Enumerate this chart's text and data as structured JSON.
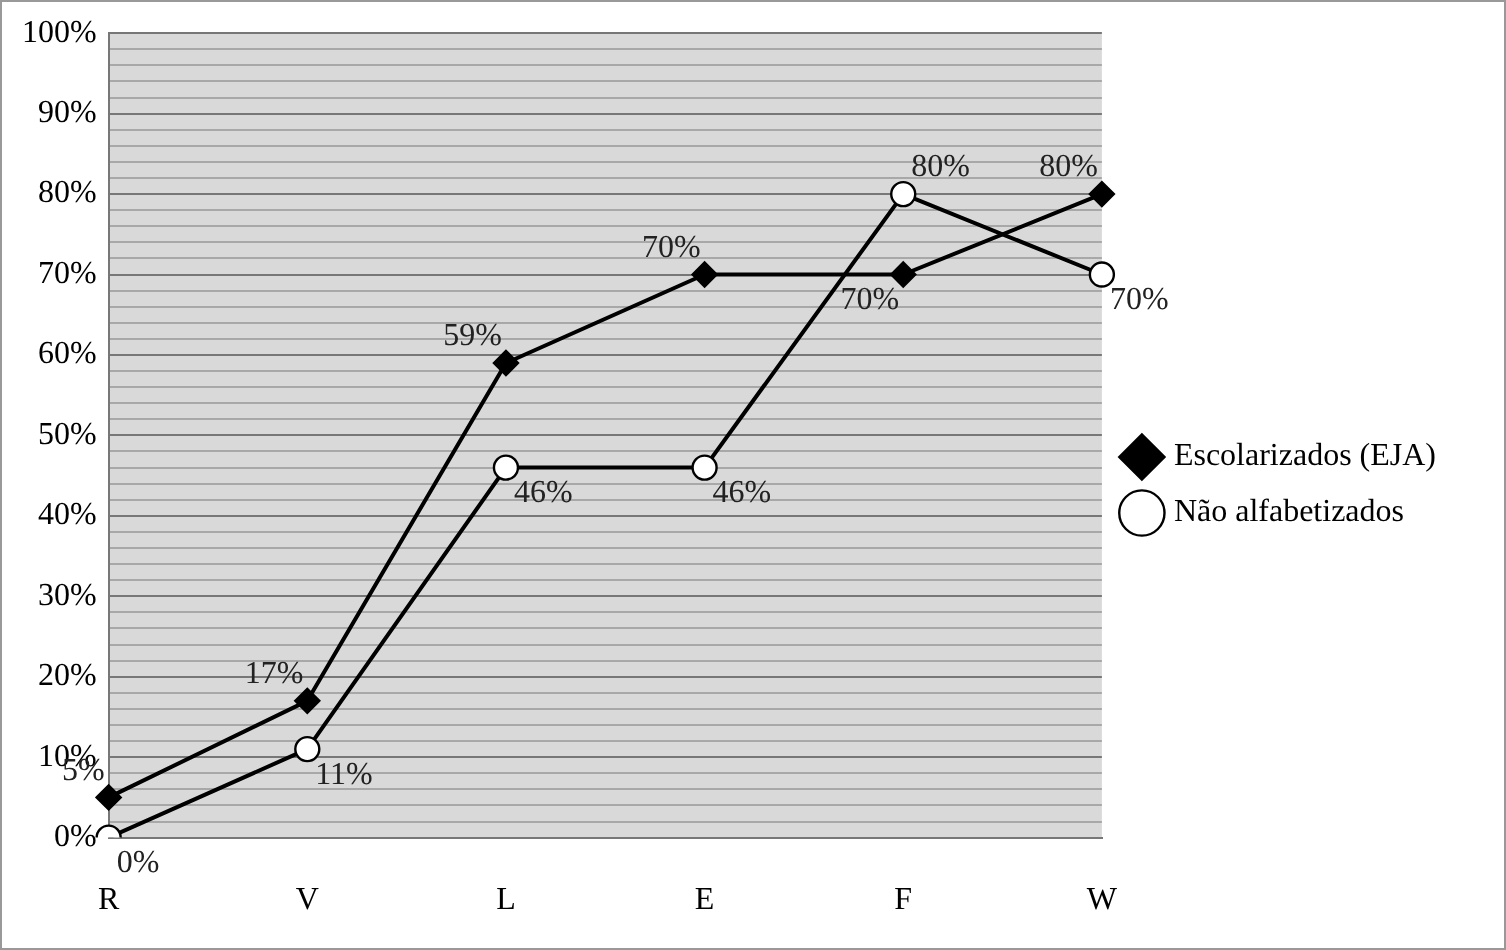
{
  "chart_data": {
    "type": "line",
    "categories": [
      "R",
      "V",
      "L",
      "E",
      "F",
      "W"
    ],
    "series": [
      {
        "name": "Escolarizados (EJA)",
        "color": "#000000",
        "marker": "diamond",
        "values": [
          5,
          17,
          59,
          70,
          70,
          80
        ]
      },
      {
        "name": "Não alfabetizados",
        "color": "#000000",
        "marker": "circle",
        "values": [
          0,
          11,
          46,
          46,
          80,
          70
        ]
      }
    ],
    "ylim": [
      0,
      100
    ],
    "yticks": [
      {
        "value": 0,
        "label": "0%"
      },
      {
        "value": 2,
        "label": null
      },
      {
        "value": 4,
        "label": null
      },
      {
        "value": 6,
        "label": null
      },
      {
        "value": 8,
        "label": null
      },
      {
        "value": 10,
        "label": "10%"
      },
      {
        "value": 12,
        "label": null
      },
      {
        "value": 14,
        "label": null
      },
      {
        "value": 16,
        "label": null
      },
      {
        "value": 18,
        "label": null
      },
      {
        "value": 20,
        "label": "20%"
      },
      {
        "value": 22,
        "label": null
      },
      {
        "value": 24,
        "label": null
      },
      {
        "value": 26,
        "label": null
      },
      {
        "value": 28,
        "label": null
      },
      {
        "value": 30,
        "label": "30%"
      },
      {
        "value": 32,
        "label": null
      },
      {
        "value": 34,
        "label": null
      },
      {
        "value": 36,
        "label": null
      },
      {
        "value": 38,
        "label": null
      },
      {
        "value": 40,
        "label": "40%"
      },
      {
        "value": 42,
        "label": null
      },
      {
        "value": 44,
        "label": null
      },
      {
        "value": 46,
        "label": null
      },
      {
        "value": 48,
        "label": null
      },
      {
        "value": 50,
        "label": "50%"
      },
      {
        "value": 52,
        "label": null
      },
      {
        "value": 54,
        "label": null
      },
      {
        "value": 56,
        "label": null
      },
      {
        "value": 58,
        "label": null
      },
      {
        "value": 60,
        "label": "60%"
      },
      {
        "value": 62,
        "label": null
      },
      {
        "value": 64,
        "label": null
      },
      {
        "value": 66,
        "label": null
      },
      {
        "value": 68,
        "label": null
      },
      {
        "value": 70,
        "label": "70%"
      },
      {
        "value": 72,
        "label": null
      },
      {
        "value": 74,
        "label": null
      },
      {
        "value": 76,
        "label": null
      },
      {
        "value": 78,
        "label": null
      },
      {
        "value": 80,
        "label": "80%"
      },
      {
        "value": 82,
        "label": null
      },
      {
        "value": 84,
        "label": null
      },
      {
        "value": 86,
        "label": null
      },
      {
        "value": 88,
        "label": null
      },
      {
        "value": 90,
        "label": "90%"
      },
      {
        "value": 92,
        "label": null
      },
      {
        "value": 94,
        "label": null
      },
      {
        "value": 96,
        "label": null
      },
      {
        "value": 98,
        "label": null
      },
      {
        "value": 100,
        "label": "100%"
      }
    ],
    "value_labels": [
      [
        "5%",
        "17%",
        "59%",
        "70%",
        "70%",
        "80%"
      ],
      [
        "0%",
        "11%",
        "46%",
        "46%",
        "80%",
        "70%"
      ]
    ],
    "grid": "y",
    "legend": "right",
    "line_style": "solid"
  }
}
